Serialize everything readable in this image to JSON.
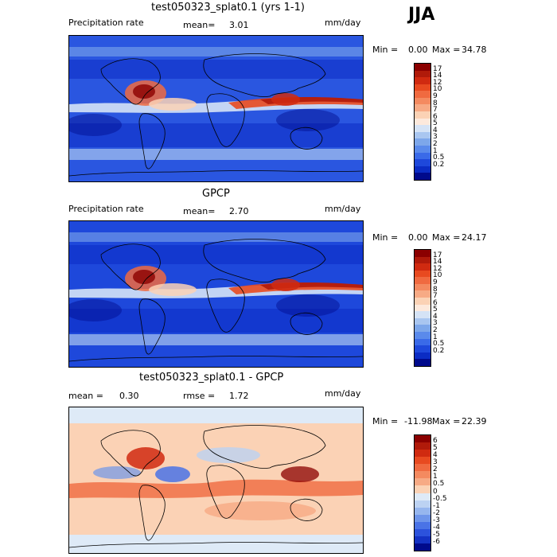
{
  "season": "JJA",
  "panels": [
    {
      "title": "test050323_splat0.1 (yrs 1-1)",
      "left_label": "Precipitation rate",
      "mid_label": "mean=",
      "mid_value": "3.01",
      "units": "mm/day",
      "minmax_label": "Min =",
      "min_value": "0.00",
      "max_label": "Max =",
      "max_value": "34.78",
      "colorbar": {
        "labels": [
          "17",
          "14",
          "12",
          "10",
          "9",
          "8",
          "7",
          "6",
          "5",
          "4",
          "3",
          "2",
          "1",
          "0.5",
          "0.2"
        ],
        "colors": [
          "#8b0000",
          "#b01a0a",
          "#d02a10",
          "#e84a20",
          "#f06a40",
          "#f48a60",
          "#f7aa85",
          "#fbd2b5",
          "#fde9dc",
          "#d5e3f6",
          "#a9c6f0",
          "#7da7ea",
          "#5a8aeb",
          "#3a6ae8",
          "#1e48db",
          "#0b2cc4",
          "#000a8c"
        ]
      },
      "map_style": "precip"
    },
    {
      "title": "GPCP",
      "left_label": "Precipitation rate",
      "mid_label": "mean=",
      "mid_value": "2.70",
      "units": "mm/day",
      "minmax_label": "Min =",
      "min_value": "0.00",
      "max_label": "Max =",
      "max_value": "24.17",
      "colorbar": {
        "labels": [
          "17",
          "14",
          "12",
          "10",
          "9",
          "8",
          "7",
          "6",
          "5",
          "4",
          "3",
          "2",
          "1",
          "0.5",
          "0.2"
        ],
        "colors": [
          "#8b0000",
          "#b01a0a",
          "#d02a10",
          "#e84a20",
          "#f06a40",
          "#f48a60",
          "#f7aa85",
          "#fbd2b5",
          "#fde9dc",
          "#d5e3f6",
          "#a9c6f0",
          "#7da7ea",
          "#5a8aeb",
          "#3a6ae8",
          "#1e48db",
          "#0b2cc4",
          "#000a8c"
        ]
      },
      "map_style": "precip"
    },
    {
      "title": "test050323_splat0.1 - GPCP",
      "left_label": "mean =",
      "left_value": "0.30",
      "mid_label": "rmse =",
      "mid_value": "1.72",
      "units": "mm/day",
      "minmax_label": "Min =",
      "min_value": "-11.98",
      "max_label": "Max =",
      "max_value": "22.39",
      "colorbar": {
        "labels": [
          "6",
          "5",
          "4",
          "3",
          "2",
          "1",
          "0.5",
          "0",
          "-0.5",
          "-1",
          "-2",
          "-3",
          "-4",
          "-5",
          "-6"
        ],
        "colors": [
          "#8b0000",
          "#b01a0a",
          "#d02a10",
          "#e84a20",
          "#f06a40",
          "#f48a60",
          "#f7aa85",
          "#fbd2b5",
          "#deeaf7",
          "#bcd2f2",
          "#96b6ee",
          "#6e95ea",
          "#4a73e6",
          "#2c52dc",
          "#1432c4",
          "#000a8c"
        ]
      },
      "map_style": "diff"
    }
  ]
}
